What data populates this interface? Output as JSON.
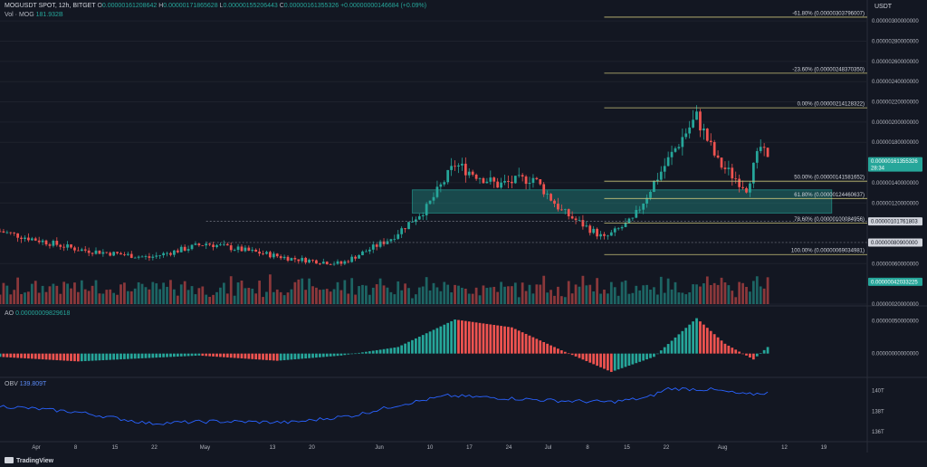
{
  "header": {
    "symbol": "MOGUSDT SPOT, 12h, BITGET",
    "ohlc": [
      {
        "label": "O",
        "value": "0.00000161208642"
      },
      {
        "label": "H",
        "value": "0.00000171865628"
      },
      {
        "label": "L",
        "value": "0.00000155206443"
      },
      {
        "label": "C",
        "value": "0.00000161355326"
      }
    ],
    "change": "+0.00000000146684 (+0.09%)",
    "volume_label": "Vol · MOG",
    "volume_value": "181.932B"
  },
  "price_axis_title": "USDT",
  "colors": {
    "background": "#131722",
    "bullish": "#26a69a",
    "bearish": "#ef5350",
    "fib_line": "#c8c27a",
    "zone": "#26a69a",
    "obv_line": "#2962ff",
    "text": "#b2b5be"
  },
  "chart_data": [
    {
      "type": "candlestick",
      "title": "MOGUSDT SPOT, 12h, BITGET",
      "x_range": [
        "2024-03-25",
        "2024-07-25"
      ],
      "x_ticks": [
        "Apr",
        "8",
        "15",
        "22",
        "May",
        "13",
        "20",
        "Jun",
        "10",
        "17",
        "24",
        "Jul",
        "8",
        "15",
        "22",
        "Aug",
        "12",
        "19"
      ],
      "y_ticks": [
        "0.00000300000000",
        "0.00000280000000",
        "0.00000260000000",
        "0.00000240000000",
        "0.00000220000000",
        "0.00000200000000",
        "0.00000180000000",
        "0.00000140000000",
        "0.00000120000000",
        "0.00000060000000",
        "0.00000020000000"
      ],
      "ylim": [
        2e-07,
        3.1e-06
      ],
      "key_points": [
        {
          "date": "2024-03-25",
          "close": 9.2e-07
        },
        {
          "date": "2024-04-05",
          "close": 7.4e-07
        },
        {
          "date": "2024-04-15",
          "close": 6.6e-07
        },
        {
          "date": "2024-04-23",
          "close": 8e-07
        },
        {
          "date": "2024-05-05",
          "close": 6.5e-07
        },
        {
          "date": "2024-05-12",
          "close": 6e-07
        },
        {
          "date": "2024-05-19",
          "close": 8.5e-07
        },
        {
          "date": "2024-05-24",
          "close": 1.15e-06
        },
        {
          "date": "2024-05-28",
          "close": 1.58e-06
        },
        {
          "date": "2024-06-03",
          "close": 1.38e-06
        },
        {
          "date": "2024-06-08",
          "close": 1.45e-06
        },
        {
          "date": "2024-06-12",
          "close": 1.12e-06
        },
        {
          "date": "2024-06-16",
          "close": 9.4e-07
        },
        {
          "date": "2024-06-18",
          "close": 8.5e-07
        },
        {
          "date": "2024-06-22",
          "close": 1.03e-06
        },
        {
          "date": "2024-06-25",
          "close": 1.4e-06
        },
        {
          "date": "2024-06-29",
          "close": 1.85e-06
        },
        {
          "date": "2024-07-01",
          "close": 2.05e-06
        },
        {
          "date": "2024-07-04",
          "close": 1.6e-06
        },
        {
          "date": "2024-07-08",
          "close": 1.35e-06
        },
        {
          "date": "2024-07-10",
          "close": 1.75e-06
        },
        {
          "date": "2024-07-11",
          "close": 1.61e-06
        }
      ],
      "price_labels": [
        {
          "text": "0.00000161355326",
          "sub": "28:34",
          "value": 1.61355326e-06,
          "color": "#26a69a"
        },
        {
          "text": "0.00000101761803",
          "value": 1.01761803e-06,
          "color": "#d1d4dc"
        },
        {
          "text": "0.00000080900000",
          "value": 8.09e-07,
          "color": "#d1d4dc"
        },
        {
          "text": "0.00000042033225",
          "value": 4.2033225e-07,
          "color": "#26a69a"
        }
      ],
      "fib_levels": [
        {
          "ratio": "-61.80%",
          "text": "-61.80% (0.00000303796007)",
          "value": 3.03796007e-06
        },
        {
          "ratio": "-23.60%",
          "text": "-23.60% (0.00000248370350)",
          "value": 2.4837035e-06
        },
        {
          "ratio": "0.00%",
          "text": "0.00% (0.00000214128322)",
          "value": 2.14128322e-06
        },
        {
          "ratio": "50.00%",
          "text": "50.00% (0.00000141581652)",
          "value": 1.41581652e-06
        },
        {
          "ratio": "61.80%",
          "text": "61.80% (0.00000124460637)",
          "value": 1.24460637e-06
        },
        {
          "ratio": "78.60%",
          "text": "78.60% (0.00000100084956)",
          "value": 1.00084956e-06
        },
        {
          "ratio": "100.00%",
          "text": "100.00% (0.00000069034981)",
          "value": 6.9034981e-07
        }
      ],
      "support_zone": {
        "from_date": "2024-05-22",
        "to_date": "2024-07-20",
        "low": 1.1e-06,
        "high": 1.33e-06
      },
      "horizontal_levels": [
        1.01761803e-06,
        8.09e-07
      ]
    },
    {
      "type": "bar",
      "title": "AO",
      "value_label": "0.00000009829618",
      "y_ticks": [
        "0.00000050000000",
        "0.00000000000000"
      ],
      "ylim": [
        -3.5e-07,
        7e-07
      ],
      "key_points": [
        {
          "date": "2024-03-25",
          "value": -5e-08
        },
        {
          "date": "2024-04-05",
          "value": -1.2e-07
        },
        {
          "date": "2024-04-22",
          "value": -3e-08
        },
        {
          "date": "2024-05-03",
          "value": -1.1e-07
        },
        {
          "date": "2024-05-12",
          "value": -3e-08
        },
        {
          "date": "2024-05-20",
          "value": 1e-07
        },
        {
          "date": "2024-05-28",
          "value": 5.2e-07
        },
        {
          "date": "2024-06-05",
          "value": 4e-07
        },
        {
          "date": "2024-06-12",
          "value": 5e-08
        },
        {
          "date": "2024-06-19",
          "value": -2.8e-07
        },
        {
          "date": "2024-06-25",
          "value": -5e-08
        },
        {
          "date": "2024-07-01",
          "value": 5.4e-07
        },
        {
          "date": "2024-07-05",
          "value": 1.5e-07
        },
        {
          "date": "2024-07-09",
          "value": -9e-08
        },
        {
          "date": "2024-07-11",
          "value": 1e-07
        }
      ]
    },
    {
      "type": "line",
      "title": "OBV",
      "value_label": "139.809T",
      "y_ticks": [
        "140T",
        "138T",
        "136T"
      ],
      "ylim": [
        135.2,
        141.2
      ],
      "key_points": [
        {
          "date": "2024-03-25",
          "value": 138.5
        },
        {
          "date": "2024-04-05",
          "value": 137.9
        },
        {
          "date": "2024-04-15",
          "value": 136.8
        },
        {
          "date": "2024-04-24",
          "value": 137.0
        },
        {
          "date": "2024-05-05",
          "value": 136.9
        },
        {
          "date": "2024-05-14",
          "value": 137.6
        },
        {
          "date": "2024-05-20",
          "value": 138.6
        },
        {
          "date": "2024-05-27",
          "value": 139.5
        },
        {
          "date": "2024-06-03",
          "value": 139.3
        },
        {
          "date": "2024-06-12",
          "value": 139.0
        },
        {
          "date": "2024-06-19",
          "value": 138.9
        },
        {
          "date": "2024-06-24",
          "value": 139.3
        },
        {
          "date": "2024-06-27",
          "value": 140.2
        },
        {
          "date": "2024-07-03",
          "value": 140.1
        },
        {
          "date": "2024-07-08",
          "value": 139.6
        },
        {
          "date": "2024-07-11",
          "value": 139.8
        }
      ]
    }
  ],
  "branding": "TradingView"
}
